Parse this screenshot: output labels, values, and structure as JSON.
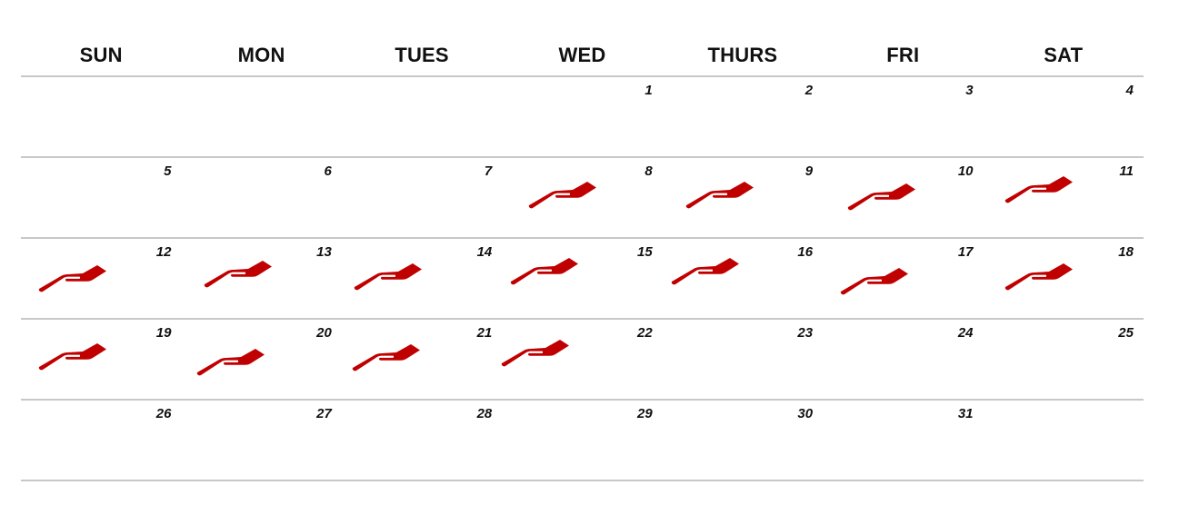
{
  "calendar": {
    "weekdays": [
      "SUN",
      "MON",
      "TUES",
      "WED",
      "THURS",
      "FRI",
      "SAT"
    ],
    "weeks": [
      [
        {
          "day": "",
          "marked": false
        },
        {
          "day": "",
          "marked": false
        },
        {
          "day": "",
          "marked": false
        },
        {
          "day": "1",
          "marked": false
        },
        {
          "day": "2",
          "marked": false
        },
        {
          "day": "3",
          "marked": false
        },
        {
          "day": "4",
          "marked": false
        }
      ],
      [
        {
          "day": "5",
          "marked": false
        },
        {
          "day": "6",
          "marked": false
        },
        {
          "day": "7",
          "marked": false
        },
        {
          "day": "8",
          "marked": true
        },
        {
          "day": "9",
          "marked": true
        },
        {
          "day": "10",
          "marked": true
        },
        {
          "day": "11",
          "marked": true
        }
      ],
      [
        {
          "day": "12",
          "marked": true
        },
        {
          "day": "13",
          "marked": true
        },
        {
          "day": "14",
          "marked": true
        },
        {
          "day": "15",
          "marked": true
        },
        {
          "day": "16",
          "marked": true
        },
        {
          "day": "17",
          "marked": true
        },
        {
          "day": "18",
          "marked": true
        }
      ],
      [
        {
          "day": "19",
          "marked": true
        },
        {
          "day": "20",
          "marked": true
        },
        {
          "day": "21",
          "marked": true
        },
        {
          "day": "22",
          "marked": true
        },
        {
          "day": "23",
          "marked": false
        },
        {
          "day": "24",
          "marked": false
        },
        {
          "day": "25",
          "marked": false
        }
      ],
      [
        {
          "day": "26",
          "marked": false
        },
        {
          "day": "27",
          "marked": false
        },
        {
          "day": "28",
          "marked": false
        },
        {
          "day": "29",
          "marked": false
        },
        {
          "day": "30",
          "marked": false
        },
        {
          "day": "31",
          "marked": false
        },
        {
          "day": "",
          "marked": false
        }
      ]
    ],
    "marker_icon": "giving-hand-icon",
    "marker_color": "#c00000",
    "grid_line_color": "#c8c8c8"
  }
}
